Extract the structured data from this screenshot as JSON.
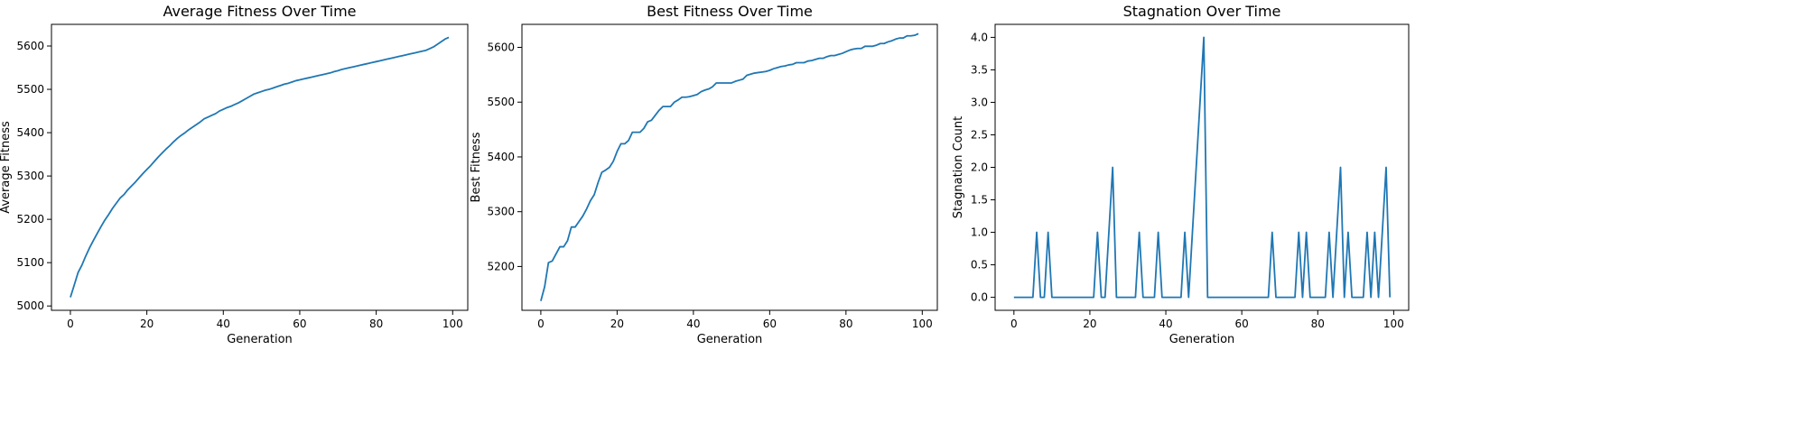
{
  "chart_data": [
    {
      "type": "line",
      "title": "Average Fitness Over Time",
      "xlabel": "Generation",
      "ylabel": "Average Fitness",
      "xlim": [
        -4.95,
        103.95
      ],
      "ylim": [
        4990,
        5650
      ],
      "xticks": [
        0,
        20,
        40,
        60,
        80,
        100
      ],
      "yticks": [
        5000,
        5100,
        5200,
        5300,
        5400,
        5500,
        5600
      ],
      "grid": false,
      "color": "#1f77b4",
      "series": [
        {
          "values": [
            5020,
            5048,
            5077,
            5094,
            5115,
            5134,
            5151,
            5167,
            5183,
            5198,
            5211,
            5225,
            5237,
            5249,
            5257,
            5268,
            5277,
            5286,
            5296,
            5306,
            5315,
            5324,
            5334,
            5344,
            5353,
            5362,
            5370,
            5379,
            5387,
            5394,
            5400,
            5407,
            5413,
            5419,
            5425,
            5432,
            5436,
            5440,
            5444,
            5450,
            5454,
            5458,
            5461,
            5465,
            5469,
            5474,
            5479,
            5484,
            5489,
            5492,
            5495,
            5498,
            5500,
            5503,
            5506,
            5509,
            5512,
            5514,
            5517,
            5520,
            5522,
            5524,
            5526,
            5528,
            5530,
            5532,
            5534,
            5536,
            5538,
            5541,
            5543,
            5546,
            5548,
            5550,
            5552,
            5554,
            5556,
            5558,
            5560,
            5562,
            5564,
            5566,
            5568,
            5570,
            5572,
            5574,
            5576,
            5578,
            5580,
            5582,
            5584,
            5586,
            5588,
            5590,
            5594,
            5598,
            5604,
            5610,
            5616,
            5620
          ]
        }
      ]
    },
    {
      "type": "line",
      "title": "Best Fitness Over Time",
      "xlabel": "Generation",
      "ylabel": "Best Fitness",
      "xlim": [
        -4.95,
        103.95
      ],
      "ylim": [
        5120,
        5642
      ],
      "xticks": [
        0,
        20,
        40,
        60,
        80,
        100
      ],
      "yticks": [
        5200,
        5300,
        5400,
        5500,
        5600
      ],
      "grid": false,
      "color": "#1f77b4",
      "series": [
        {
          "values": [
            5137,
            5163,
            5207,
            5210,
            5223,
            5236,
            5236,
            5247,
            5272,
            5272,
            5282,
            5292,
            5305,
            5320,
            5331,
            5353,
            5372,
            5376,
            5381,
            5392,
            5410,
            5424,
            5424,
            5430,
            5445,
            5445,
            5445,
            5452,
            5464,
            5467,
            5476,
            5485,
            5492,
            5492,
            5492,
            5500,
            5504,
            5509,
            5509,
            5510,
            5512,
            5514,
            5519,
            5522,
            5524,
            5528,
            5535,
            5535,
            5535,
            5535,
            5535,
            5538,
            5540,
            5542,
            5549,
            5551,
            5553,
            5554,
            5555,
            5556,
            5558,
            5561,
            5563,
            5565,
            5566,
            5568,
            5569,
            5572,
            5572,
            5572,
            5575,
            5576,
            5578,
            5580,
            5580,
            5583,
            5585,
            5585,
            5587,
            5589,
            5592,
            5595,
            5597,
            5598,
            5598,
            5602,
            5602,
            5602,
            5604,
            5607,
            5607,
            5610,
            5612,
            5615,
            5617,
            5617,
            5621,
            5621,
            5622,
            5625
          ]
        }
      ]
    },
    {
      "type": "line",
      "title": "Stagnation Over Time",
      "xlabel": "Generation",
      "ylabel": "Stagnation Count",
      "xlim": [
        -4.95,
        103.95
      ],
      "ylim": [
        -0.2,
        4.2
      ],
      "xticks": [
        0,
        20,
        40,
        60,
        80,
        100
      ],
      "yticks": [
        0.0,
        0.5,
        1.0,
        1.5,
        2.0,
        2.5,
        3.0,
        3.5,
        4.0
      ],
      "ytick_labels": [
        "0.0",
        "0.5",
        "1.0",
        "1.5",
        "2.0",
        "2.5",
        "3.0",
        "3.5",
        "4.0"
      ],
      "grid": false,
      "color": "#1f77b4",
      "series": [
        {
          "values": [
            0,
            0,
            0,
            0,
            0,
            0,
            1,
            0,
            0,
            1,
            0,
            0,
            0,
            0,
            0,
            0,
            0,
            0,
            0,
            0,
            0,
            0,
            1,
            0,
            0,
            1,
            2,
            0,
            0,
            0,
            0,
            0,
            0,
            1,
            0,
            0,
            0,
            0,
            1,
            0,
            0,
            0,
            0,
            0,
            0,
            1,
            0,
            1,
            2,
            3,
            4,
            0,
            0,
            0,
            0,
            0,
            0,
            0,
            0,
            0,
            0,
            0,
            0,
            0,
            0,
            0,
            0,
            0,
            1,
            0,
            0,
            0,
            0,
            0,
            0,
            1,
            0,
            1,
            0,
            0,
            0,
            0,
            0,
            1,
            0,
            1,
            2,
            0,
            1,
            0,
            0,
            0,
            0,
            1,
            0,
            1,
            0,
            1,
            2,
            0
          ]
        }
      ]
    }
  ]
}
